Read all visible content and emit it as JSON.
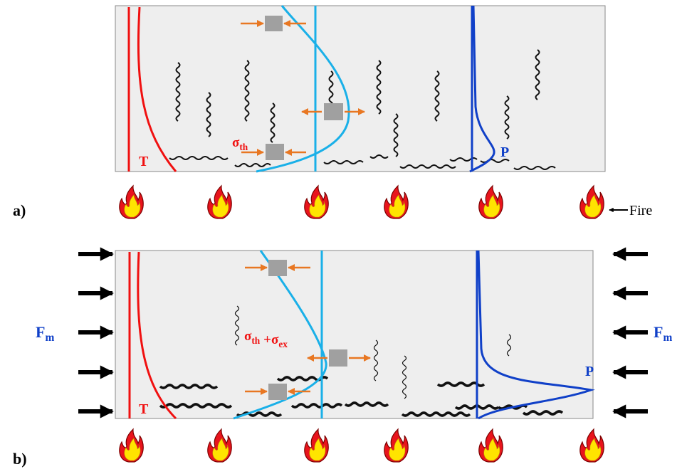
{
  "panels": [
    {
      "label": "a)",
      "temperature_label": "T",
      "stress_label": [
        {
          "symbol": "σ",
          "sub": "th"
        }
      ],
      "pressure_label": "P",
      "fire_label": "Fire"
    },
    {
      "label": "b)",
      "force_left": {
        "symbol": "F",
        "sub": "m"
      },
      "force_right": {
        "symbol": "F",
        "sub": "m"
      },
      "stress_label": [
        {
          "symbol": "σ",
          "sub": "th"
        },
        "+",
        {
          "symbol": "σ",
          "sub": "ex"
        }
      ],
      "temperature_label": "T",
      "pressure_label": "P"
    }
  ]
}
